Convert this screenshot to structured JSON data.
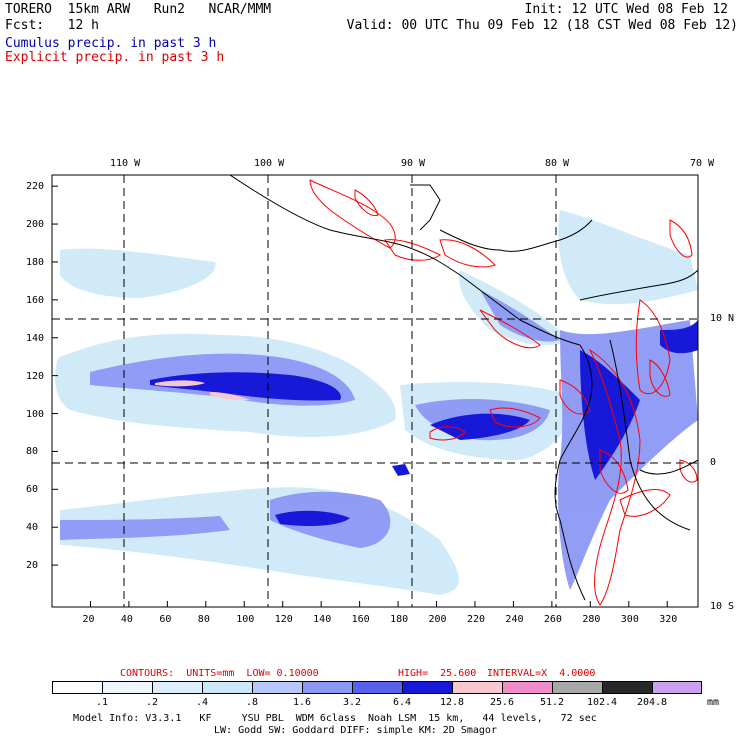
{
  "header": {
    "model": "TORERO  15km ARW   Run2   NCAR/MMM",
    "init": "Init: 12 UTC Wed 08 Feb 12",
    "fcst": "Fcst:   12 h",
    "valid": "Valid: 00 UTC Thu 09 Feb 12 (18 CST Wed 08 Feb 12)",
    "cumulus_label": "Cumulus precip. in past 3 h",
    "explicit_label": "Explicit precip. in past 3 h"
  },
  "map": {
    "lon_labels": [
      "110 W",
      "100 W",
      "90 W",
      "80 W",
      "70 W"
    ],
    "lat_labels": [
      "10 N",
      "0",
      "10 S"
    ],
    "y_ticks": [
      "220",
      "200",
      "180",
      "160",
      "140",
      "120",
      "100",
      "80",
      "60",
      "40",
      "20"
    ],
    "x_ticks": [
      "20",
      "40",
      "60",
      "80",
      "100",
      "120",
      "140",
      "160",
      "180",
      "200",
      "220",
      "240",
      "260",
      "280",
      "300",
      "320"
    ]
  },
  "contours_line": {
    "contours": "CONTOURS:  UNITS=mm  LOW= 0.10000",
    "high": "HIGH=  25.600",
    "interval": "INTERVAL=X  4.0000"
  },
  "colorbar": {
    "values": [
      ".1",
      ".2",
      ".4",
      ".8",
      "1.6",
      "3.2",
      "6.4",
      "12.8",
      "25.6",
      "51.2",
      "102.4",
      "204.8"
    ],
    "unit": "mm",
    "colors": [
      "#ffffff",
      "#eef6ff",
      "#ddeeff",
      "#cce8f8",
      "#b8c8ff",
      "#8c98f4",
      "#5a60ee",
      "#1818d8",
      "#f8c8d0",
      "#f08cc8",
      "#a8a8a8",
      "#282828",
      "#cca0ee"
    ]
  },
  "footer": {
    "line1": "Model Info: V3.3.1   KF     YSU PBL  WDM 6class  Noah LSM  15 km,   44 levels,   72 sec",
    "line2": "LW: Godd SW: Goddard DIFF: simple KM: 2D Smagor"
  },
  "colors": {
    "cumulus": "#0000aa",
    "explicit": "#dd0000",
    "contour": "#ff0000",
    "coast": "#000000"
  }
}
